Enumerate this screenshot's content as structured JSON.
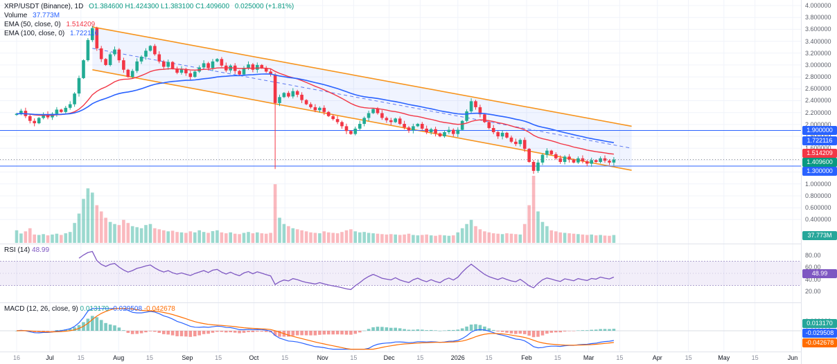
{
  "header": {
    "symbol_line": {
      "symbol": "XRP/USDT (Binance), 1D",
      "ohlc": "O1.384600  H1.424300  L1.383100  C1.409600",
      "change": "0.025000 (+1.81%)"
    },
    "volume_label": "Volume",
    "volume_value": "37.773M",
    "ema50_label": "EMA (50, close, 0)",
    "ema50_value": "1.514209",
    "ema100_label": "EMA (100, close, 0)",
    "ema100_value": "1.722116"
  },
  "rsi_header": {
    "label": "RSI (14)",
    "value": "48.99"
  },
  "macd_header": {
    "label": "MACD (12, 26, close, 9)",
    "hist": "0.013170",
    "macd": "-0.029508",
    "signal": "-0.042678"
  },
  "chart_data": {
    "type": "candlestick",
    "symbol": "XRP/USDT",
    "exchange": "Binance",
    "interval": "1D",
    "title": "XRP/USDT (Binance), 1D",
    "last": {
      "open": 1.3846,
      "high": 1.4243,
      "low": 1.3831,
      "close": 1.4096,
      "change": 0.025,
      "change_pct": 1.81,
      "volume_m": 37.773
    },
    "sampling_note": "closes estimated from chart, sampled ~every 2 days, mid-Jun 2025 to mid-Mar 2026",
    "first_open": 2.16,
    "closes": [
      2.18,
      2.23,
      2.14,
      2.06,
      2.02,
      2.11,
      2.17,
      2.12,
      2.18,
      2.25,
      2.21,
      2.28,
      2.34,
      2.52,
      2.78,
      3.08,
      3.42,
      3.62,
      3.28,
      3.1,
      3.0,
      3.18,
      3.26,
      3.08,
      2.92,
      2.8,
      2.9,
      3.06,
      3.14,
      3.24,
      3.32,
      3.18,
      3.06,
      2.97,
      3.05,
      2.94,
      2.87,
      2.93,
      2.86,
      2.8,
      2.89,
      2.96,
      3.03,
      2.95,
      3.06,
      3.1,
      2.99,
      2.91,
      2.99,
      2.9,
      2.84,
      2.95,
      3.01,
      2.92,
      3.0,
      2.95,
      2.89,
      2.84,
      2.36,
      2.46,
      2.53,
      2.47,
      2.56,
      2.5,
      2.41,
      2.34,
      2.29,
      2.24,
      2.28,
      2.21,
      2.14,
      2.09,
      2.04,
      1.97,
      1.89,
      1.84,
      1.93,
      2.01,
      2.11,
      2.19,
      2.26,
      2.19,
      2.11,
      2.07,
      2.04,
      2.1,
      2.01,
      1.95,
      1.9,
      1.97,
      2.01,
      1.93,
      1.87,
      1.92,
      1.85,
      1.8,
      1.87,
      1.91,
      1.84,
      1.91,
      2.06,
      2.22,
      2.39,
      2.29,
      2.17,
      2.04,
      1.94,
      1.87,
      1.8,
      1.86,
      1.78,
      1.71,
      1.67,
      1.74,
      1.59,
      1.37,
      1.22,
      1.36,
      1.49,
      1.56,
      1.5,
      1.43,
      1.37,
      1.46,
      1.41,
      1.36,
      1.43,
      1.38,
      1.34,
      1.4,
      1.37,
      1.43,
      1.39,
      1.36,
      1.4096
    ],
    "volumes_millions": [
      60,
      45,
      55,
      70,
      40,
      38,
      42,
      36,
      40,
      44,
      38,
      46,
      52,
      95,
      140,
      210,
      260,
      240,
      180,
      150,
      120,
      100,
      90,
      85,
      110,
      95,
      80,
      75,
      70,
      85,
      90,
      70,
      65,
      60,
      55,
      58,
      52,
      50,
      48,
      55,
      50,
      60,
      52,
      48,
      56,
      60,
      50,
      46,
      50,
      44,
      42,
      48,
      52,
      46,
      50,
      46,
      44,
      48,
      280,
      120,
      90,
      80,
      70,
      65,
      60,
      55,
      50,
      48,
      46,
      55,
      50,
      48,
      46,
      52,
      60,
      65,
      55,
      50,
      52,
      48,
      46,
      44,
      42,
      40,
      42,
      40,
      38,
      40,
      44,
      38,
      36,
      38,
      40,
      36,
      34,
      38,
      36,
      34,
      36,
      50,
      70,
      90,
      110,
      80,
      65,
      55,
      50,
      46,
      44,
      42,
      46,
      44,
      42,
      40,
      90,
      180,
      320,
      150,
      100,
      80,
      60,
      55,
      50,
      48,
      46,
      44,
      42,
      40,
      38,
      40,
      36,
      38,
      35,
      34,
      37.773
    ],
    "volume_max_scale": 330,
    "wick_overrides": {
      "17": {
        "high": 3.66
      },
      "58": {
        "low": 1.25
      },
      "116": {
        "low": 1.17
      }
    },
    "levels": [
      1.9,
      1.3
    ],
    "channel": {
      "i1": 17,
      "i2": 138,
      "upper": [
        3.64,
        1.97
      ],
      "lower": [
        2.92,
        1.23
      ],
      "midline": true
    },
    "price_axis_ticks": [
      4.0,
      3.8,
      3.6,
      3.4,
      3.2,
      3.0,
      2.8,
      2.6,
      2.4,
      2.2,
      2.0,
      1.8,
      1.6,
      1.4,
      1.2,
      1.0,
      0.8,
      0.6,
      0.4
    ],
    "time_axis_labels": [
      {
        "t": "16",
        "d": 0,
        "major": false
      },
      {
        "t": "Jul",
        "d": 15,
        "major": true
      },
      {
        "t": "15",
        "d": 29,
        "major": false
      },
      {
        "t": "Aug",
        "d": 46,
        "major": true
      },
      {
        "t": "15",
        "d": 60,
        "major": false
      },
      {
        "t": "Sep",
        "d": 77,
        "major": true
      },
      {
        "t": "15",
        "d": 91,
        "major": false
      },
      {
        "t": "Oct",
        "d": 107,
        "major": true
      },
      {
        "t": "15",
        "d": 121,
        "major": false
      },
      {
        "t": "Nov",
        "d": 138,
        "major": true
      },
      {
        "t": "15",
        "d": 152,
        "major": false
      },
      {
        "t": "Dec",
        "d": 168,
        "major": true
      },
      {
        "t": "15",
        "d": 182,
        "major": false
      },
      {
        "t": "2026",
        "d": 199,
        "major": true
      },
      {
        "t": "15",
        "d": 213,
        "major": false
      },
      {
        "t": "Feb",
        "d": 230,
        "major": true
      },
      {
        "t": "15",
        "d": 244,
        "major": false
      },
      {
        "t": "Mar",
        "d": 258,
        "major": true
      },
      {
        "t": "15",
        "d": 272,
        "major": false
      },
      {
        "t": "Apr",
        "d": 289,
        "major": true
      },
      {
        "t": "15",
        "d": 303,
        "major": false
      },
      {
        "t": "May",
        "d": 319,
        "major": true
      },
      {
        "t": "15",
        "d": 333,
        "major": false
      },
      {
        "t": "Jun",
        "d": 350,
        "major": true
      }
    ],
    "indicators": {
      "ema50": {
        "period": 50,
        "last": 1.514209,
        "color": "#f23645"
      },
      "ema100": {
        "period": 100,
        "last": 1.722116,
        "color": "#2962ff"
      },
      "rsi": {
        "period": 14,
        "last": 48.99,
        "upper_band": 70,
        "lower_band": 30,
        "ticks": [
          80,
          60,
          40,
          20
        ],
        "color": "#7e57c2",
        "band_fill": "rgba(126,87,194,0.10)"
      },
      "macd": {
        "fast": 12,
        "slow": 26,
        "signal_period": 9,
        "last_hist": 0.01317,
        "last_macd": -0.029508,
        "last_signal": -0.042678,
        "ticks": [
          0.1,
          0.0
        ],
        "macd_color": "#2962ff",
        "signal_color": "#ff6d00",
        "hist_pos_color": "#26a69a",
        "hist_neg_color": "#ef5350"
      }
    },
    "price_badges": [
      {
        "text": "1.900000",
        "price": 1.9,
        "color": "#2962ff"
      },
      {
        "text": "1.722116",
        "price": 1.722116,
        "color": "#2962ff"
      },
      {
        "text": "1.514209",
        "price": 1.514209,
        "color": "#f23645"
      },
      {
        "text": "1.409600",
        "price": 1.4096,
        "color": "#089981"
      },
      {
        "text": "1.300000",
        "price": 1.3,
        "color": "#2962ff"
      },
      {
        "text": "37.773M",
        "price": 0.13,
        "color": "#26a69a"
      }
    ],
    "rsi_badge": {
      "text": "48.99",
      "value": 48.99,
      "color": "#7e57c2"
    },
    "macd_badges": [
      {
        "text": "0.013170",
        "color": "#26a69a"
      },
      {
        "text": "-0.029508",
        "color": "#2962ff"
      },
      {
        "text": "-0.042678",
        "color": "#ff6d00"
      }
    ],
    "style": {
      "up": "#22ab94",
      "down": "#f23645",
      "vol_up": "rgba(34,171,148,0.45)",
      "vol_down": "rgba(242,54,69,0.35)",
      "grid": "#f0f3fa",
      "axis_text": "#5d606b",
      "level_color": "#2962ff",
      "channel_color": "#f7941d",
      "channel_fill": "rgba(41,98,255,0.07)",
      "channel_mid_color": "#5b77f0",
      "last_price_line": "#787b86"
    }
  }
}
